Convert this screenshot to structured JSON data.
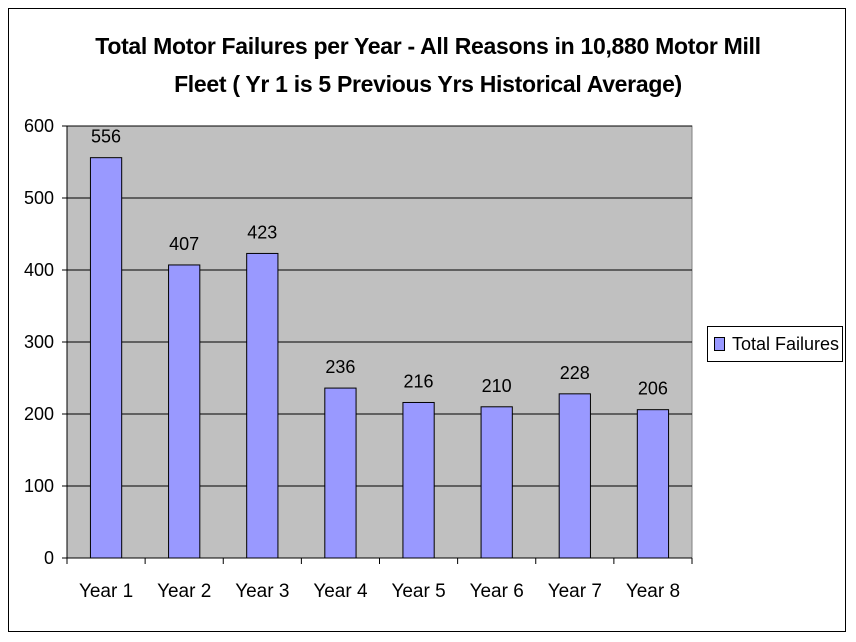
{
  "chart_data": {
    "type": "bar",
    "title_lines": [
      "Total Motor Failures per Year - All Reasons in 10,880 Motor Mill",
      "Fleet ( Yr 1 is 5 Previous Yrs Historical Average)"
    ],
    "categories": [
      "Year 1",
      "Year 2",
      "Year 3",
      "Year 4",
      "Year 5",
      "Year 6",
      "Year 7",
      "Year 8"
    ],
    "series": [
      {
        "name": "Total Failures",
        "values": [
          556,
          407,
          423,
          236,
          216,
          210,
          228,
          206
        ]
      }
    ],
    "data_labels": [
      "556",
      "407",
      "423",
      "236",
      "216",
      "210",
      "228",
      "206"
    ],
    "y_ticks": [
      "0",
      "100",
      "200",
      "300",
      "400",
      "500",
      "600"
    ],
    "ylim": [
      0,
      600
    ],
    "grid": true,
    "legend_position": "right",
    "colors": {
      "bar": "#9999ff",
      "plot_area": "#c0c0c0",
      "gridline": "#000000"
    }
  }
}
